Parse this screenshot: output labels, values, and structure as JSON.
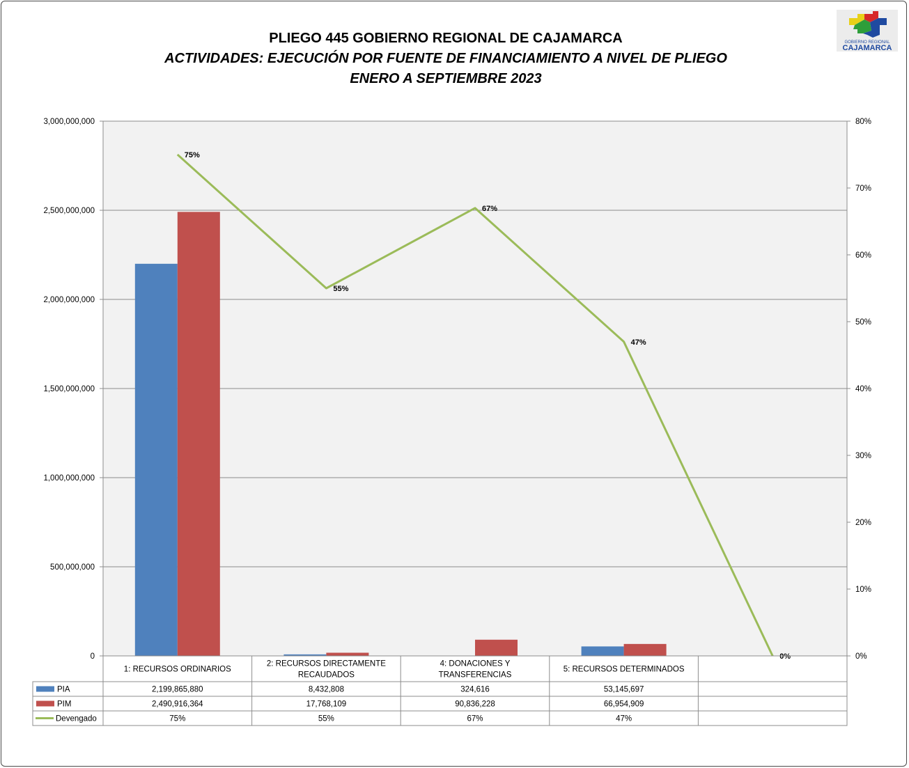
{
  "chart_data": {
    "type": "bar",
    "title": "PLIEGO 445 GOBIERNO REGIONAL DE CAJAMARCA",
    "subtitle": "ACTIVIDADES: EJECUCIÓN POR FUENTE DE FINANCIAMIENTO A NIVEL DE PLIEGO",
    "period": "ENERO A SEPTIEMBRE 2023",
    "categories": [
      [
        "1: RECURSOS ORDINARIOS"
      ],
      [
        "2: RECURSOS DIRECTAMENTE",
        "RECAUDADOS"
      ],
      [
        "4: DONACIONES Y",
        "TRANSFERENCIAS"
      ],
      [
        "5: RECURSOS DETERMINADOS"
      ],
      [
        ""
      ]
    ],
    "series": [
      {
        "name": "PIA",
        "type": "bar",
        "axis": "left",
        "color": "#4f81bd",
        "values": [
          2199865880,
          8432808,
          324616,
          53145697,
          null
        ],
        "table_values": [
          "2,199,865,880",
          "8,432,808",
          "324,616",
          "53,145,697",
          ""
        ]
      },
      {
        "name": "PIM",
        "type": "bar",
        "axis": "left",
        "color": "#c0504d",
        "values": [
          2490916364,
          17768109,
          90836228,
          66954909,
          null
        ],
        "table_values": [
          "2,490,916,364",
          "17,768,109",
          "90,836,228",
          "66,954,909",
          ""
        ]
      },
      {
        "name": "Devengado",
        "type": "line",
        "axis": "right",
        "color": "#9bbb59",
        "values": [
          0.75,
          0.55,
          0.67,
          0.47,
          0
        ],
        "point_labels": [
          "75%",
          "55%",
          "67%",
          "47%",
          "0%"
        ],
        "table_values": [
          "75%",
          "55%",
          "67%",
          "47%",
          ""
        ]
      }
    ],
    "y_left": {
      "ylim": [
        0,
        3000000000
      ],
      "ticks": [
        0,
        500000000,
        1000000000,
        1500000000,
        2000000000,
        2500000000,
        3000000000
      ],
      "tick_labels": [
        "0",
        "500,000,000",
        "1,000,000,000",
        "1,500,000,000",
        "2,000,000,000",
        "2,500,000,000",
        "3,000,000,000"
      ]
    },
    "y_right": {
      "ylim": [
        0,
        0.8
      ],
      "ticks": [
        0,
        0.1,
        0.2,
        0.3,
        0.4,
        0.5,
        0.6,
        0.7,
        0.8
      ],
      "tick_labels": [
        "0%",
        "10%",
        "20%",
        "30%",
        "40%",
        "50%",
        "60%",
        "70%",
        "80%"
      ]
    },
    "grid": true,
    "legend": "data table",
    "colors": {
      "plot_background": "#f2f2f2",
      "gridline": "#8c8c8c"
    }
  },
  "logo": {
    "line1": "GOBIERNO REGIONAL",
    "line2": "CAJAMARCA"
  }
}
